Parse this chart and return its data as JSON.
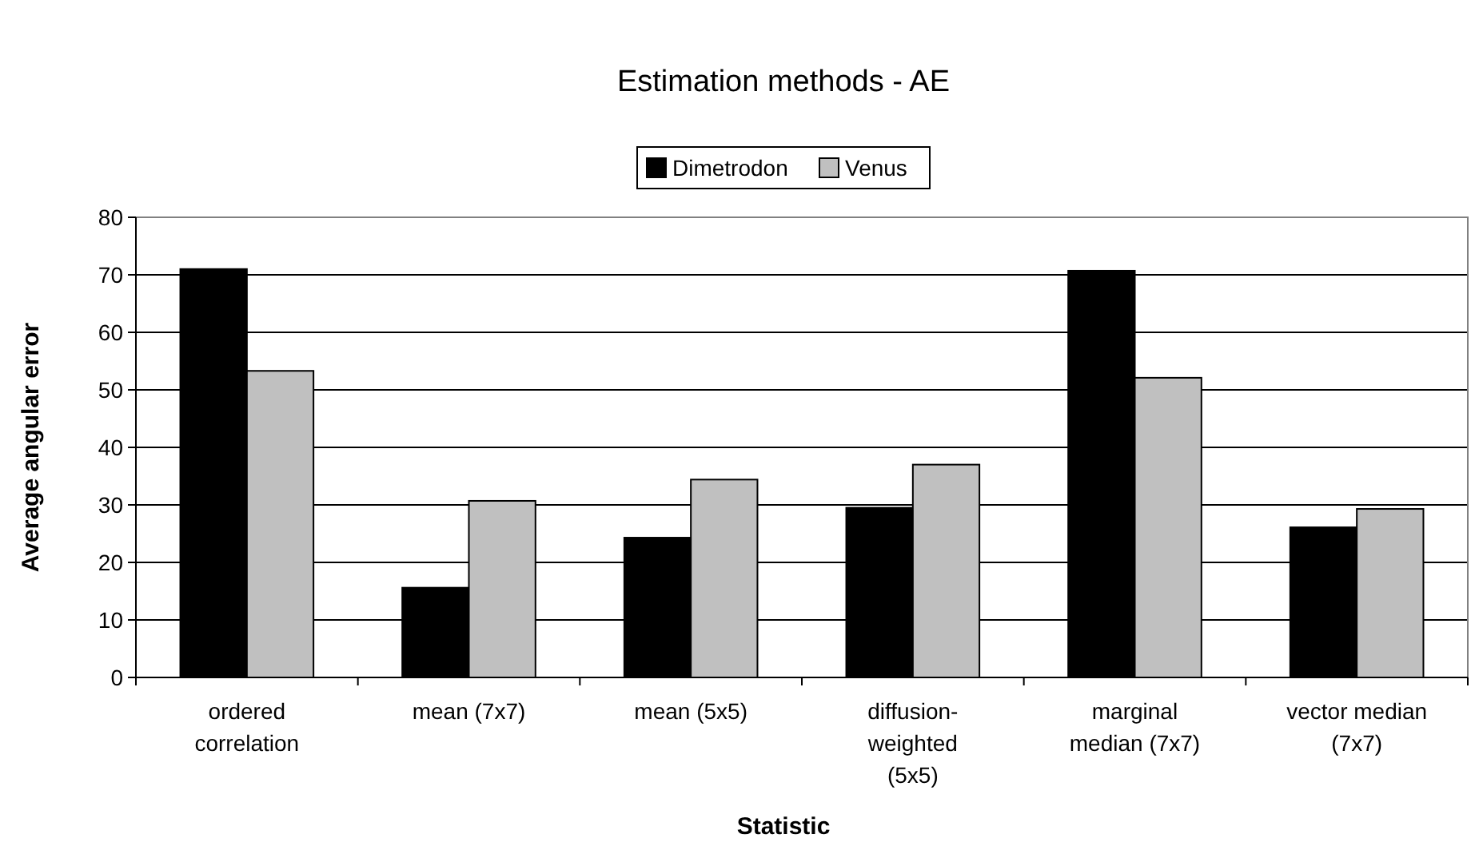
{
  "chart_data": {
    "type": "bar",
    "title": "Estimation methods - AE",
    "xlabel": "Statistic",
    "ylabel": "Average angular error",
    "categories": [
      "ordered correlation",
      "mean (7x7)",
      "mean (5x5)",
      "diffusion-weighted (5x5)",
      "marginal median (7x7)",
      "vector median (7x7)"
    ],
    "series": [
      {
        "name": "Dimetrodon",
        "color": "#000000",
        "values": [
          71.0,
          15.6,
          24.3,
          29.5,
          70.7,
          26.1
        ]
      },
      {
        "name": "Venus",
        "color": "#c0c0c0",
        "values": [
          53.3,
          30.7,
          34.4,
          37.0,
          52.1,
          29.3
        ]
      }
    ],
    "ylim": [
      0,
      80
    ],
    "yticks": [
      0,
      10,
      20,
      30,
      40,
      50,
      60,
      70,
      80
    ],
    "grid": "y",
    "legend": "top"
  }
}
